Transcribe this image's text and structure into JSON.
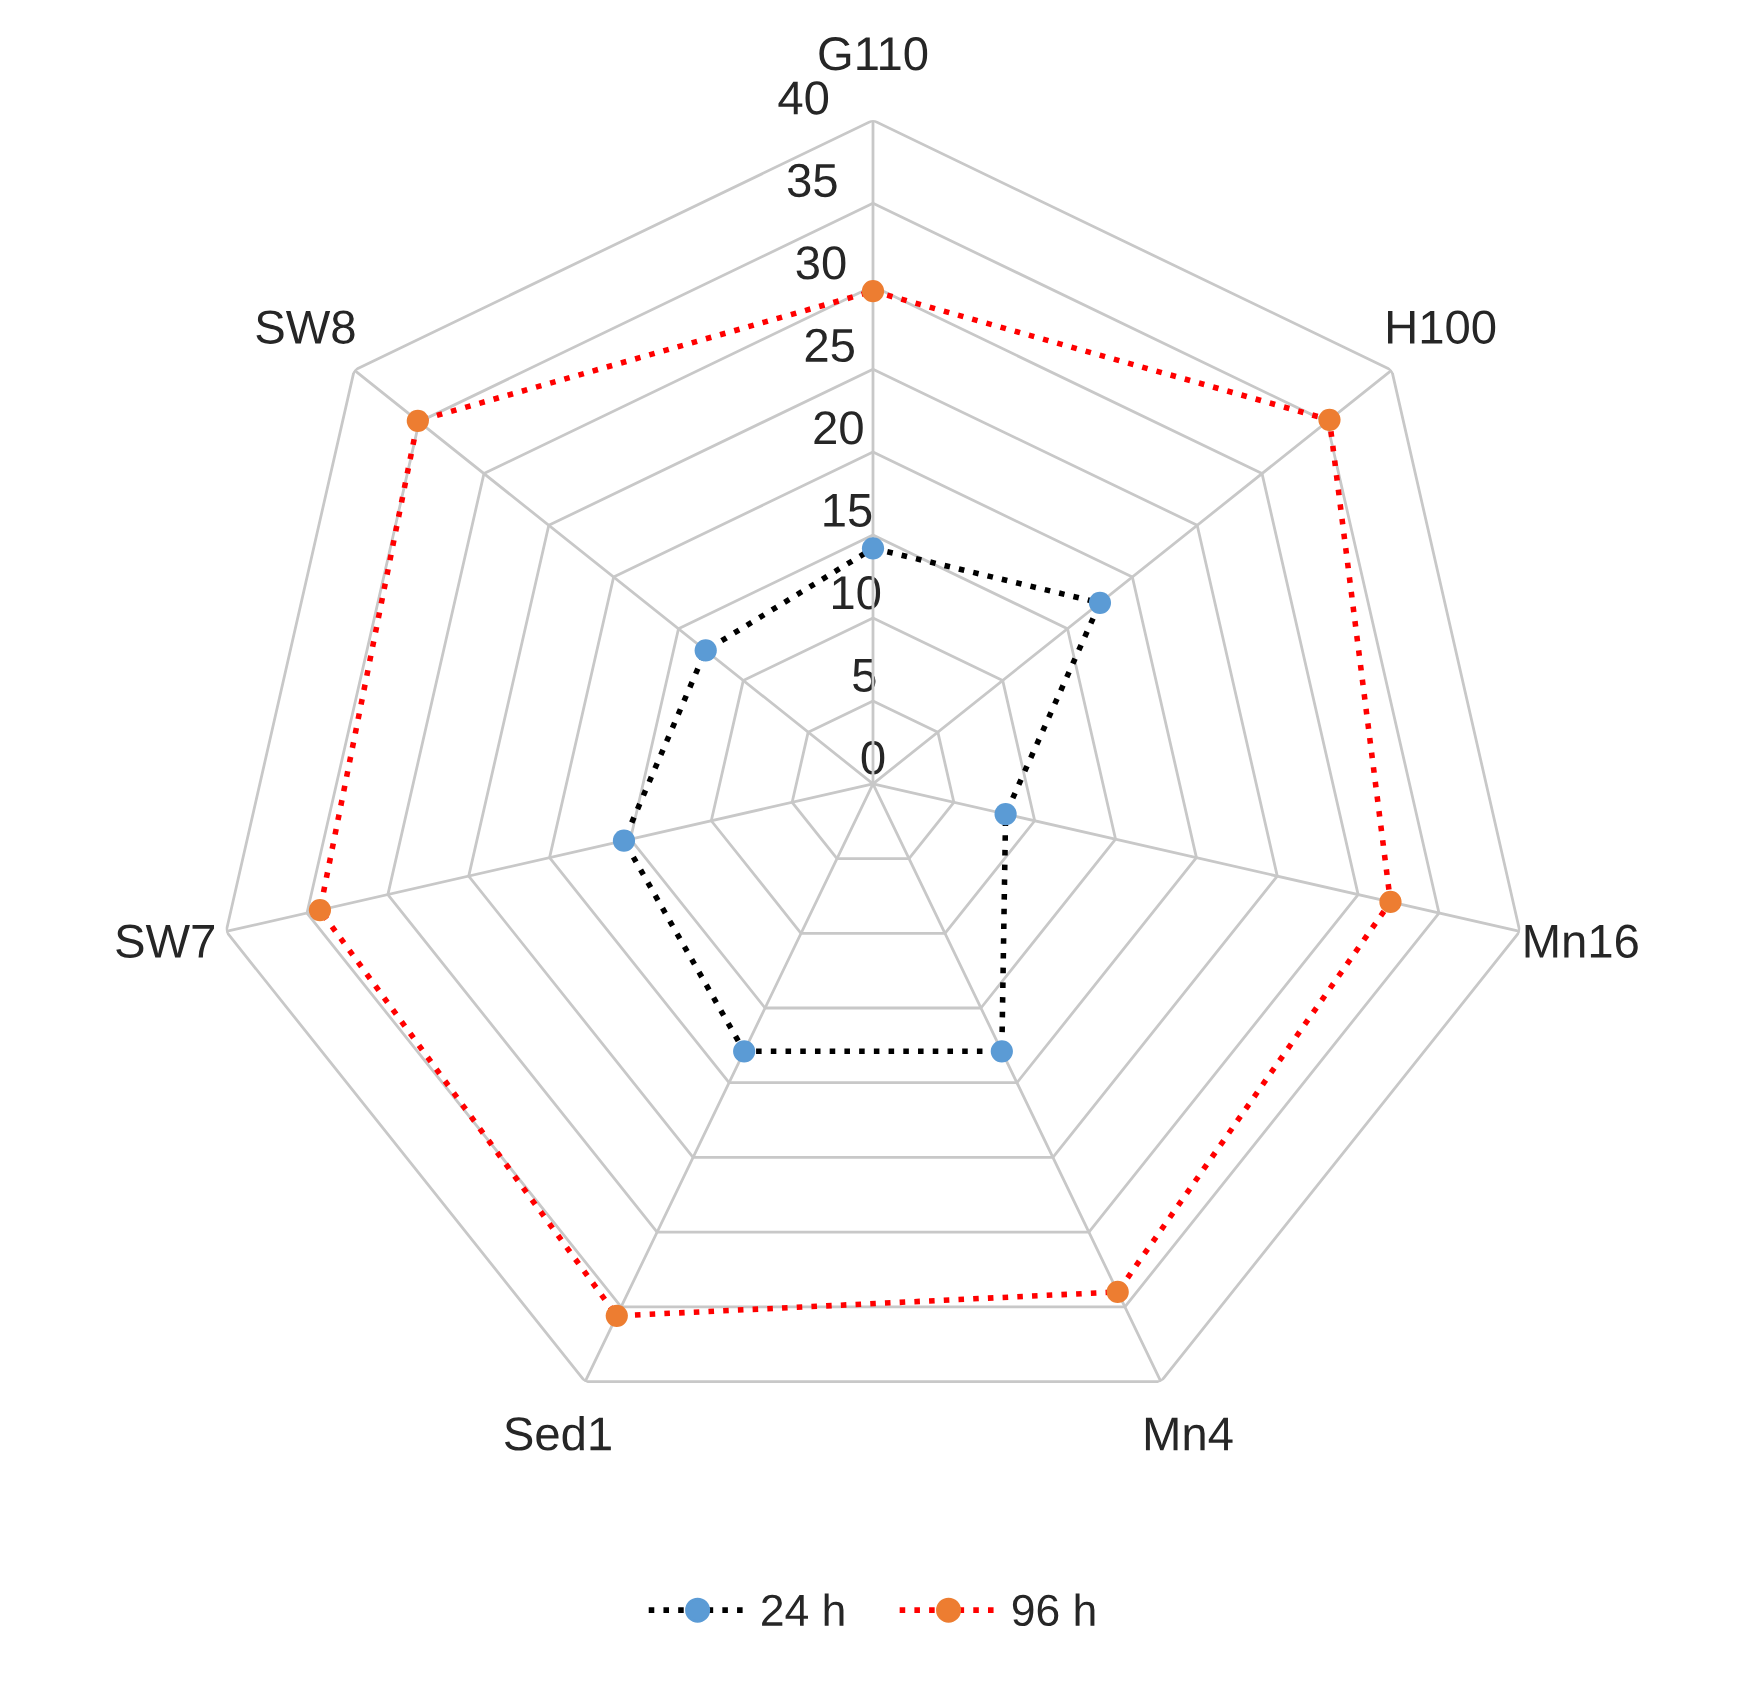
{
  "chart_data": {
    "type": "radar",
    "categories": [
      "G110",
      "H100",
      "Mn16",
      "Mn4",
      "Sed1",
      "SW7",
      "SW8"
    ],
    "ylim": [
      0,
      40
    ],
    "yticks": [
      0,
      5,
      10,
      15,
      20,
      25,
      30,
      35,
      40
    ],
    "grid": true,
    "legend": "bottom",
    "marker": "circle",
    "line_style": "dotted",
    "series": [
      {
        "name": "24 h",
        "color": "#000000",
        "colors": [
          "#5b9bd5",
          "#5b9bd5",
          "#5b9bd5",
          "#5b9bd5",
          "#5b9bd5",
          "#5b9bd5",
          "#5b9bd5"
        ],
        "values": [
          14.2,
          17.5,
          8.2,
          17.9,
          17.9,
          15.4,
          12.9
        ]
      },
      {
        "name": "96 h",
        "color": "#ff0000",
        "colors": [
          "#ed7d31",
          "#ed7d31",
          "#ed7d31",
          "#ed7d31",
          "#ed7d31",
          "#ed7d31",
          "#ed7d31"
        ],
        "values": [
          29.7,
          35.2,
          32,
          34,
          35.6,
          34.2,
          35.1
        ]
      }
    ]
  }
}
